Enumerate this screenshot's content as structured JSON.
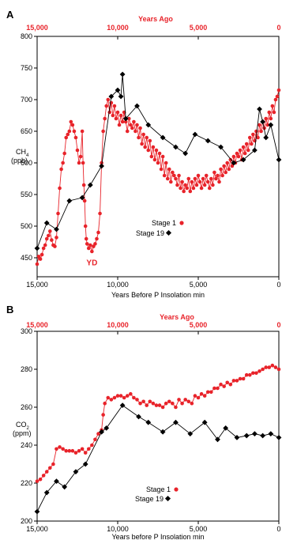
{
  "colors": {
    "stage1": "#e8232a",
    "stage19": "#000000"
  },
  "chart_data": [
    {
      "panel_label": "A",
      "type": "scatter",
      "top_axis_title": "Years Ago",
      "top_ticks": [
        "15,000",
        "10,000",
        "5,000",
        "0"
      ],
      "xlabel": "Years Before P Insolation min",
      "ylabel_main": "CH",
      "ylabel_sub": "4",
      "ylabel_units": "(ppb)",
      "xlim": [
        15000,
        0
      ],
      "ylim": [
        420,
        800
      ],
      "x_ticks": [
        15000,
        10000,
        5000,
        0
      ],
      "x_tick_labels": [
        "15,000",
        "10,000",
        "5,000",
        "0"
      ],
      "y_ticks": [
        450,
        500,
        550,
        600,
        650,
        700,
        750,
        800
      ],
      "y_tick_labels": [
        "450",
        "500",
        "550",
        "600",
        "650",
        "700",
        "750",
        "800"
      ],
      "grid": false,
      "legend": {
        "placement": "center",
        "entries": [
          "Stage 1",
          "Stage 19"
        ]
      },
      "annotations": [
        {
          "text": "YD",
          "x": 11600,
          "y": 438
        }
      ],
      "series": [
        {
          "name": "Stage 1",
          "style": "red-dots-line",
          "x": [
            15000,
            14900,
            14800,
            14700,
            14600,
            14500,
            14400,
            14300,
            14200,
            14100,
            14000,
            13900,
            13800,
            13700,
            13600,
            13500,
            13400,
            13300,
            13200,
            13100,
            13000,
            12900,
            12800,
            12700,
            12600,
            12500,
            12400,
            12300,
            12200,
            12150,
            12100,
            12050,
            12000,
            11950,
            11900,
            11800,
            11700,
            11600,
            11500,
            11400,
            11300,
            11200,
            11100,
            11000,
            10900,
            10800,
            10700,
            10600,
            10500,
            10400,
            10300,
            10200,
            10100,
            10000,
            9900,
            9800,
            9700,
            9600,
            9500,
            9400,
            9300,
            9200,
            9100,
            9000,
            8900,
            8800,
            8700,
            8600,
            8500,
            8400,
            8300,
            8200,
            8100,
            8000,
            7900,
            7800,
            7700,
            7600,
            7500,
            7400,
            7300,
            7200,
            7100,
            7000,
            6900,
            6800,
            6700,
            6600,
            6500,
            6400,
            6300,
            6200,
            6100,
            6000,
            5900,
            5800,
            5700,
            5600,
            5500,
            5400,
            5300,
            5200,
            5100,
            5000,
            4900,
            4800,
            4700,
            4600,
            4500,
            4400,
            4300,
            4200,
            4100,
            4000,
            3900,
            3800,
            3700,
            3600,
            3500,
            3400,
            3300,
            3200,
            3100,
            3000,
            2900,
            2800,
            2700,
            2600,
            2500,
            2400,
            2300,
            2200,
            2100,
            2000,
            1900,
            1800,
            1700,
            1600,
            1500,
            1400,
            1300,
            1200,
            1100,
            1000,
            900,
            800,
            700,
            600,
            500,
            400,
            300,
            200,
            100,
            0
          ],
          "y": [
            440,
            452,
            448,
            455,
            465,
            470,
            480,
            485,
            492,
            478,
            470,
            468,
            482,
            520,
            560,
            590,
            600,
            615,
            640,
            645,
            650,
            665,
            660,
            650,
            640,
            620,
            600,
            610,
            650,
            600,
            565,
            540,
            500,
            480,
            472,
            465,
            470,
            460,
            468,
            472,
            480,
            490,
            520,
            600,
            650,
            670,
            690,
            700,
            680,
            695,
            675,
            690,
            670,
            680,
            660,
            675,
            665,
            680,
            665,
            650,
            670,
            660,
            655,
            665,
            650,
            660,
            640,
            655,
            630,
            645,
            625,
            640,
            620,
            635,
            610,
            625,
            605,
            620,
            600,
            615,
            590,
            610,
            580,
            600,
            575,
            590,
            570,
            585,
            580,
            575,
            565,
            580,
            560,
            570,
            555,
            565,
            560,
            575,
            555,
            570,
            560,
            575,
            565,
            580,
            570,
            560,
            575,
            565,
            580,
            570,
            560,
            575,
            565,
            585,
            575,
            580,
            570,
            590,
            580,
            595,
            585,
            600,
            590,
            605,
            595,
            610,
            600,
            615,
            610,
            620,
            605,
            625,
            615,
            630,
            620,
            640,
            630,
            645,
            635,
            650,
            640,
            660,
            650,
            665,
            655,
            670,
            660,
            680,
            670,
            690,
            680,
            700,
            705,
            715
          ]
        },
        {
          "name": "Stage 19",
          "style": "black-diamond-line",
          "x": [
            15000,
            14400,
            13800,
            13000,
            12200,
            11700,
            11000,
            10400,
            10000,
            9800,
            9700,
            9500,
            8800,
            8100,
            7200,
            6400,
            5800,
            5200,
            4400,
            3600,
            2800,
            2200,
            1500,
            1200,
            1000,
            800,
            500,
            0
          ],
          "y": [
            465,
            505,
            495,
            540,
            545,
            565,
            595,
            705,
            715,
            705,
            740,
            670,
            690,
            660,
            640,
            625,
            615,
            645,
            635,
            625,
            600,
            605,
            620,
            685,
            665,
            640,
            660,
            605
          ]
        }
      ]
    },
    {
      "panel_label": "B",
      "type": "scatter",
      "top_axis_title": "Years Ago",
      "top_ticks": [
        "15,000",
        "10,000",
        "5,000",
        "0"
      ],
      "xlabel": "Years before P Insolation min",
      "ylabel_main": "CO",
      "ylabel_sub": "2",
      "ylabel_units": "(ppm)",
      "xlim": [
        15000,
        0
      ],
      "ylim": [
        200,
        300
      ],
      "x_ticks": [
        15000,
        10000,
        5000,
        0
      ],
      "x_tick_labels": [
        "15,000",
        "10,000",
        "5,000",
        "0"
      ],
      "y_ticks": [
        200,
        220,
        240,
        260,
        280,
        300
      ],
      "y_tick_labels": [
        "200",
        "220",
        "240",
        "260",
        "280",
        "300"
      ],
      "grid": false,
      "legend": {
        "placement": "bottom-center",
        "entries": [
          "Stage 1",
          "Stage 19"
        ]
      },
      "annotations": [],
      "series": [
        {
          "name": "Stage 1",
          "style": "red-dots-line",
          "x": [
            15000,
            14800,
            14600,
            14400,
            14200,
            14000,
            13800,
            13600,
            13400,
            13200,
            13000,
            12800,
            12600,
            12400,
            12200,
            12000,
            11800,
            11600,
            11400,
            11200,
            11000,
            10900,
            10800,
            10600,
            10400,
            10200,
            10000,
            9800,
            9600,
            9400,
            9200,
            9000,
            8800,
            8600,
            8400,
            8200,
            8000,
            7800,
            7600,
            7400,
            7200,
            7000,
            6800,
            6600,
            6400,
            6200,
            6000,
            5800,
            5600,
            5400,
            5200,
            5000,
            4800,
            4600,
            4400,
            4200,
            4000,
            3800,
            3600,
            3400,
            3200,
            3000,
            2800,
            2600,
            2400,
            2200,
            2000,
            1800,
            1600,
            1400,
            1200,
            1000,
            800,
            600,
            400,
            200,
            0
          ],
          "y": [
            221,
            222,
            224,
            226,
            228,
            230,
            238,
            239,
            238,
            237,
            237,
            237,
            236,
            237,
            238,
            236,
            238,
            240,
            243,
            246,
            248,
            256,
            262,
            265,
            264,
            265,
            266,
            266,
            265,
            266,
            267,
            265,
            264,
            262,
            263,
            261,
            263,
            262,
            261,
            261,
            260,
            262,
            263,
            262,
            260,
            264,
            262,
            264,
            263,
            262,
            266,
            265,
            267,
            266,
            268,
            268,
            270,
            270,
            272,
            271,
            273,
            272,
            274,
            274,
            275,
            275,
            277,
            277,
            278,
            278,
            279,
            280,
            281,
            281,
            282,
            281,
            280
          ]
        },
        {
          "name": "Stage 19",
          "style": "black-diamond-line",
          "x": [
            15000,
            14400,
            13800,
            13300,
            12600,
            12000,
            11000,
            10700,
            9700,
            8700,
            8100,
            7200,
            6400,
            5500,
            4600,
            3800,
            3300,
            2600,
            2000,
            1500,
            1000,
            500,
            0
          ],
          "y": [
            205,
            215,
            221,
            218,
            226,
            230,
            247,
            249,
            261,
            255,
            252,
            247,
            252,
            246,
            252,
            243,
            249,
            244,
            245,
            246,
            245,
            246,
            244
          ]
        }
      ]
    }
  ]
}
